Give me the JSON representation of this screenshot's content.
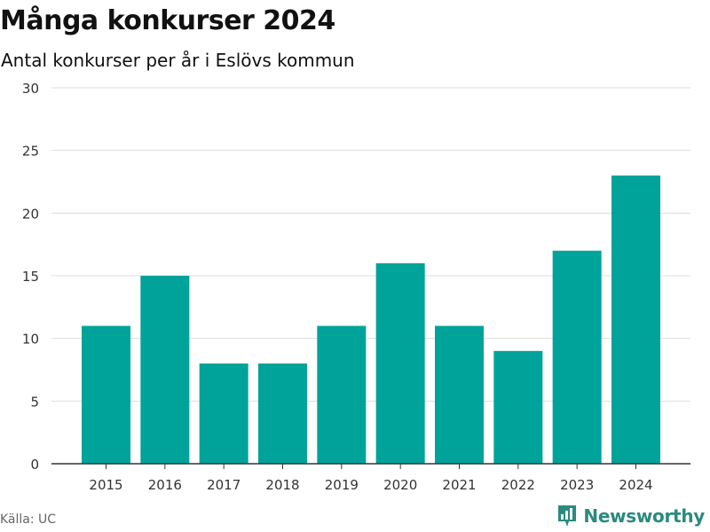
{
  "header": {
    "title": "Många konkurser 2024",
    "subtitle": "Antal konkurser per år i Eslövs kommun"
  },
  "footer": {
    "source": "Källa: UC",
    "brand": "Newsworthy",
    "brand_icon": "newsworthy-logo-icon"
  },
  "colors": {
    "bar": "#00a39a",
    "grid": "#dddddd",
    "axis": "#333333",
    "brand": "#2a8a7e"
  },
  "chart_data": {
    "type": "bar",
    "title": "Många konkurser 2024",
    "subtitle": "Antal konkurser per år i Eslövs kommun",
    "xlabel": "",
    "ylabel": "",
    "categories": [
      "2015",
      "2016",
      "2017",
      "2018",
      "2019",
      "2020",
      "2021",
      "2022",
      "2023",
      "2024"
    ],
    "values": [
      11,
      15,
      8,
      8,
      11,
      16,
      11,
      9,
      17,
      23
    ],
    "ylim": [
      0,
      30
    ],
    "yticks": [
      0,
      5,
      10,
      15,
      20,
      25,
      30
    ],
    "grid": true,
    "legend": "none"
  }
}
